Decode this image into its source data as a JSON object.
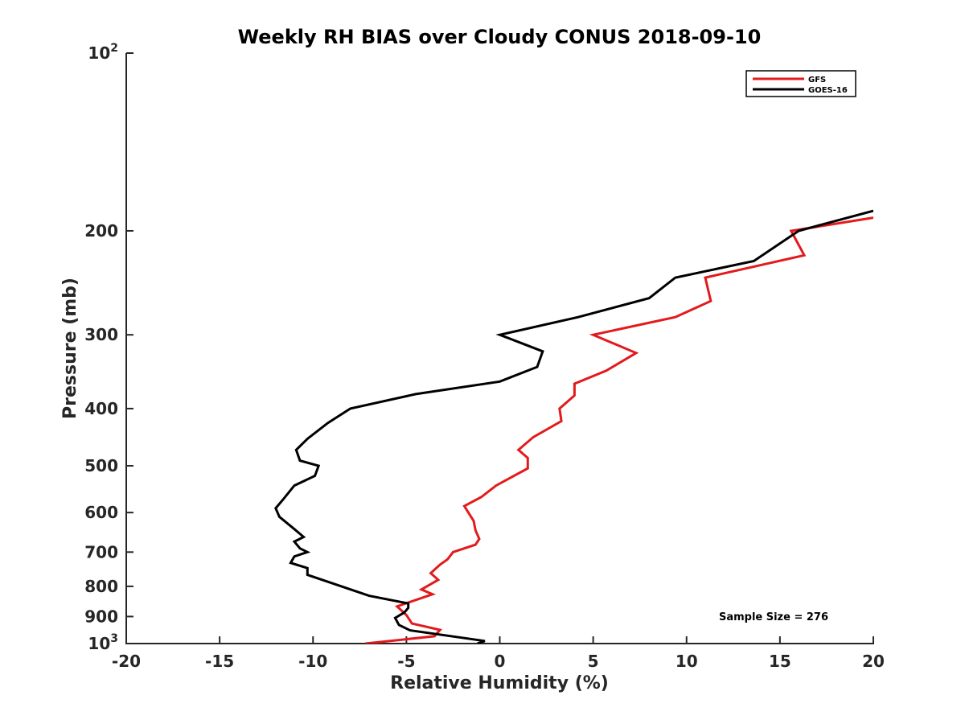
{
  "chart_data": {
    "type": "line",
    "title": "Weekly RH BIAS over Cloudy CONUS 2018-09-10",
    "xlabel": "Relative Humidity (%)",
    "ylabel": "Pressure (mb)",
    "xlim": [
      -20,
      20
    ],
    "ylim": [
      100,
      1000
    ],
    "yscale": "log",
    "y_reversed": true,
    "grid": false,
    "legend_position": "top-right",
    "x_ticks": [
      -20,
      -15,
      -10,
      -5,
      0,
      5,
      10,
      15,
      20
    ],
    "x_tick_labels": [
      "-20",
      "-15",
      "-10",
      "-5",
      "0",
      "5",
      "10",
      "15",
      "20"
    ],
    "y_ticks": [
      100,
      200,
      300,
      400,
      500,
      600,
      700,
      800,
      900,
      1000
    ],
    "y_tick_labels": [
      {
        "value": 100,
        "base": "10",
        "exp": "2"
      },
      {
        "value": 200,
        "base": "200",
        "exp": ""
      },
      {
        "value": 300,
        "base": "300",
        "exp": ""
      },
      {
        "value": 400,
        "base": "400",
        "exp": ""
      },
      {
        "value": 500,
        "base": "500",
        "exp": ""
      },
      {
        "value": 600,
        "base": "600",
        "exp": ""
      },
      {
        "value": 700,
        "base": "700",
        "exp": ""
      },
      {
        "value": 800,
        "base": "800",
        "exp": ""
      },
      {
        "value": 900,
        "base": "900",
        "exp": ""
      },
      {
        "value": 1000,
        "base": "10",
        "exp": "3"
      }
    ],
    "annotation": "Sample Size = 276",
    "series": [
      {
        "name": "GFS",
        "color": "#e31a1c",
        "points": [
          {
            "x": 20,
            "p": 190
          },
          {
            "x": 15.6,
            "p": 200
          },
          {
            "x": 16.3,
            "p": 220
          },
          {
            "x": 11,
            "p": 240
          },
          {
            "x": 11.3,
            "p": 263
          },
          {
            "x": 9.4,
            "p": 280
          },
          {
            "x": 5,
            "p": 300
          },
          {
            "x": 7.3,
            "p": 322
          },
          {
            "x": 5.7,
            "p": 345
          },
          {
            "x": 4,
            "p": 363
          },
          {
            "x": 4,
            "p": 380
          },
          {
            "x": 3.2,
            "p": 400
          },
          {
            "x": 3.3,
            "p": 420
          },
          {
            "x": 1.8,
            "p": 447
          },
          {
            "x": 1,
            "p": 470
          },
          {
            "x": 1.5,
            "p": 485
          },
          {
            "x": 1.5,
            "p": 505
          },
          {
            "x": -0.2,
            "p": 540
          },
          {
            "x": -1,
            "p": 565
          },
          {
            "x": -1.9,
            "p": 585
          },
          {
            "x": -1.4,
            "p": 620
          },
          {
            "x": -1.3,
            "p": 643
          },
          {
            "x": -1.1,
            "p": 665
          },
          {
            "x": -1.3,
            "p": 680
          },
          {
            "x": -2.5,
            "p": 700
          },
          {
            "x": -2.8,
            "p": 720
          },
          {
            "x": -3.2,
            "p": 735
          },
          {
            "x": -3.7,
            "p": 760
          },
          {
            "x": -3.3,
            "p": 780
          },
          {
            "x": -4.2,
            "p": 810
          },
          {
            "x": -3.6,
            "p": 825
          },
          {
            "x": -5.5,
            "p": 865
          },
          {
            "x": -5,
            "p": 895
          },
          {
            "x": -4.7,
            "p": 925
          },
          {
            "x": -3.2,
            "p": 948
          },
          {
            "x": -3.5,
            "p": 972
          },
          {
            "x": -7.2,
            "p": 1000
          }
        ]
      },
      {
        "name": "GOES-16",
        "color": "#000000",
        "points": [
          {
            "x": 20,
            "p": 185
          },
          {
            "x": 16,
            "p": 200
          },
          {
            "x": 13.6,
            "p": 225
          },
          {
            "x": 9.4,
            "p": 240
          },
          {
            "x": 8,
            "p": 260
          },
          {
            "x": 4.2,
            "p": 280
          },
          {
            "x": 0,
            "p": 300
          },
          {
            "x": 2.3,
            "p": 320
          },
          {
            "x": 2,
            "p": 340
          },
          {
            "x": 0,
            "p": 360
          },
          {
            "x": -4.5,
            "p": 378
          },
          {
            "x": -8,
            "p": 400
          },
          {
            "x": -9.2,
            "p": 423
          },
          {
            "x": -10.3,
            "p": 450
          },
          {
            "x": -10.9,
            "p": 470
          },
          {
            "x": -10.7,
            "p": 490
          },
          {
            "x": -9.7,
            "p": 500
          },
          {
            "x": -9.9,
            "p": 520
          },
          {
            "x": -11,
            "p": 540
          },
          {
            "x": -11.6,
            "p": 570
          },
          {
            "x": -12,
            "p": 590
          },
          {
            "x": -11.8,
            "p": 610
          },
          {
            "x": -11,
            "p": 640
          },
          {
            "x": -10.5,
            "p": 660
          },
          {
            "x": -11,
            "p": 672
          },
          {
            "x": -10.7,
            "p": 690
          },
          {
            "x": -10.3,
            "p": 700
          },
          {
            "x": -11,
            "p": 712
          },
          {
            "x": -11.2,
            "p": 730
          },
          {
            "x": -10.3,
            "p": 745
          },
          {
            "x": -10.3,
            "p": 765
          },
          {
            "x": -7,
            "p": 830
          },
          {
            "x": -4.9,
            "p": 855
          },
          {
            "x": -4.9,
            "p": 870
          },
          {
            "x": -5.1,
            "p": 885
          },
          {
            "x": -5.6,
            "p": 905
          },
          {
            "x": -5.4,
            "p": 930
          },
          {
            "x": -4.8,
            "p": 950
          },
          {
            "x": -0.8,
            "p": 990
          },
          {
            "x": -1.2,
            "p": 1000
          }
        ]
      }
    ]
  }
}
